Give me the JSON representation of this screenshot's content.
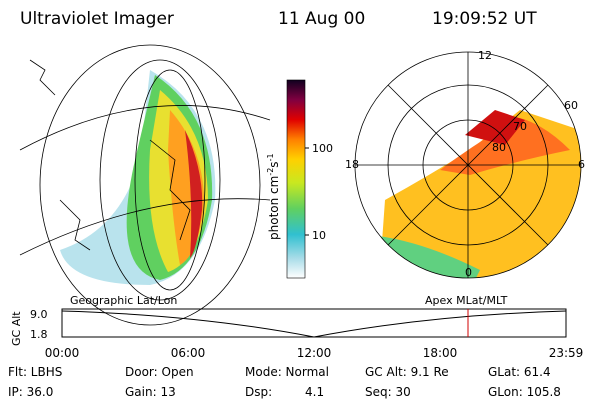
{
  "header": {
    "title": "Ultraviolet Imager",
    "date": "11 Aug 00",
    "time": "19:09:52 UT"
  },
  "colorbar": {
    "label": [
      "photon cm",
      "-2",
      "s",
      "-1"
    ],
    "ticks": [
      "100",
      "10"
    ]
  },
  "polar": {
    "mlt_labels": [
      "12",
      "18",
      "6",
      "0"
    ],
    "lat_labels": [
      "60",
      "70",
      "80"
    ]
  },
  "panels": {
    "left": "Geographic Lat/Lon",
    "right": "Apex MLat/MLT"
  },
  "timeline": {
    "axis_label": "GC Alt",
    "y_labels": [
      "9.0",
      "1.8"
    ],
    "x_labels": [
      "00:00",
      "06:00",
      "12:00",
      "18:00",
      "23:59"
    ]
  },
  "info": {
    "row1": [
      "Flt: LBHS",
      "Door: Open",
      "Mode: Normal",
      "GC Alt: 9.1 Re",
      "GLat: 61.4"
    ],
    "row2": [
      "IP: 36.0",
      "Gain: 13",
      "Dsp:",
      "4.1",
      "Seq: 30",
      "GLon: 105.8"
    ]
  }
}
